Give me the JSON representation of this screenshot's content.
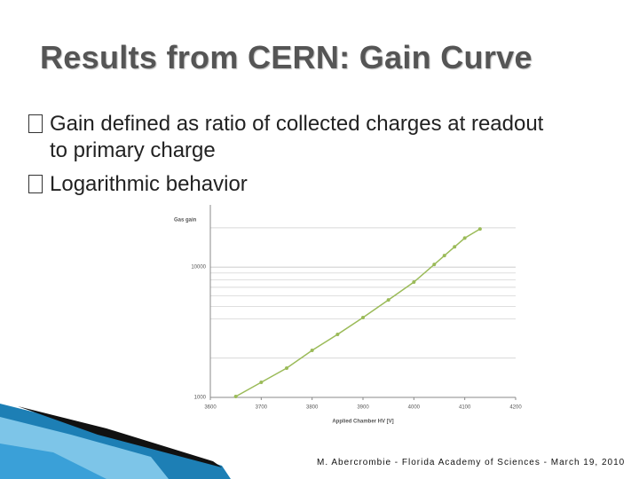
{
  "title": "Results from CERN: Gain Curve",
  "bullets": [
    "Gain defined as ratio of collected charges at readout to primary charge",
    "Logarithmic behavior"
  ],
  "footer": "M. Abercrombie - Florida Academy of Sciences - March 19, 2010",
  "chart_data": {
    "type": "line",
    "y_label": "Gas gain",
    "x_label": "Applied Chamber HV [V]",
    "log_y": true,
    "grid": true,
    "color": "#9bbb59",
    "x": [
      3650,
      3700,
      3750,
      3800,
      3850,
      3900,
      3950,
      4000,
      4040,
      4060,
      4080,
      4100,
      4130
    ],
    "values": [
      1016,
      1305,
      1677,
      2295,
      3042,
      4096,
      5600,
      7670,
      10470,
      12250,
      14300,
      16700,
      19600
    ],
    "xlim": [
      3600,
      4200
    ],
    "xticks": [
      3600,
      3700,
      3800,
      3900,
      4000,
      4100,
      4200
    ],
    "ylim": [
      1000,
      30000
    ],
    "yticks": [
      1000,
      10000
    ],
    "y_minor_ticks": [
      2000,
      4000,
      5000,
      6000,
      7000,
      8000,
      9000,
      20000
    ]
  }
}
